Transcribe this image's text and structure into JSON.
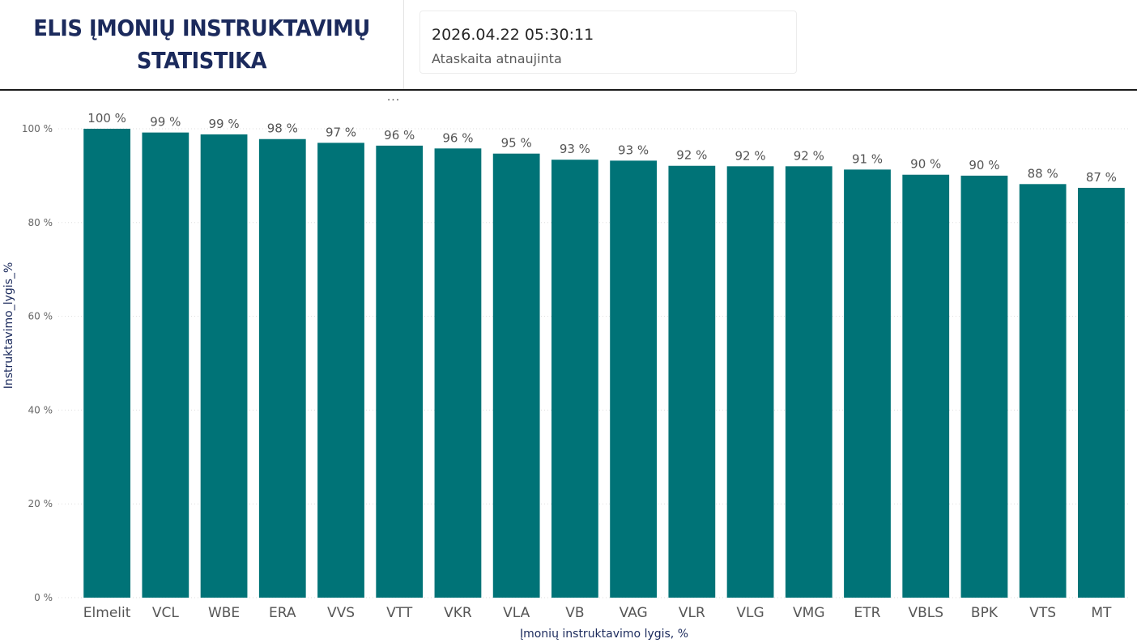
{
  "header": {
    "title_line1": "ELIS ĮMONIŲ INSTRUKTAVIMŲ",
    "title_line2": "STATISTIKA",
    "report_time": "2026.04.22 05:30:11",
    "report_note": "Ataskaita atnaujinta",
    "more_menu": "..."
  },
  "colors": {
    "bar": "#007377",
    "title": "#1b2a5c",
    "grid": "#dddddd"
  },
  "chart_data": {
    "type": "bar",
    "categories": [
      "Elmelit",
      "VCL",
      "WBE",
      "ERA",
      "VVS",
      "VTT",
      "VKR",
      "VLA",
      "VB",
      "VAG",
      "VLR",
      "VLG",
      "VMG",
      "ETR",
      "VBLS",
      "BPK",
      "VTS",
      "MT"
    ],
    "values": [
      100,
      99.2,
      98.8,
      97.8,
      97.0,
      96.4,
      95.8,
      94.7,
      93.4,
      93.2,
      92.1,
      92.0,
      92.0,
      91.3,
      90.2,
      90.0,
      88.2,
      87.4
    ],
    "data_labels": [
      "100 %",
      "99 %",
      "99 %",
      "98 %",
      "97 %",
      "96 %",
      "96 %",
      "95 %",
      "93 %",
      "93 %",
      "92 %",
      "92 %",
      "92 %",
      "91 %",
      "90 %",
      "90 %",
      "88 %",
      "87 %"
    ],
    "yticks": [
      0,
      20,
      40,
      60,
      80,
      100
    ],
    "ytick_labels": [
      "0 %",
      "20 %",
      "40 %",
      "60 %",
      "80 %",
      "100 %"
    ],
    "ylim": [
      0,
      100
    ],
    "xlabel": "Įmonių instruktavimo lygis, %",
    "ylabel": "Instruktavimo_lygis_%",
    "grid": true,
    "legend": "none"
  }
}
